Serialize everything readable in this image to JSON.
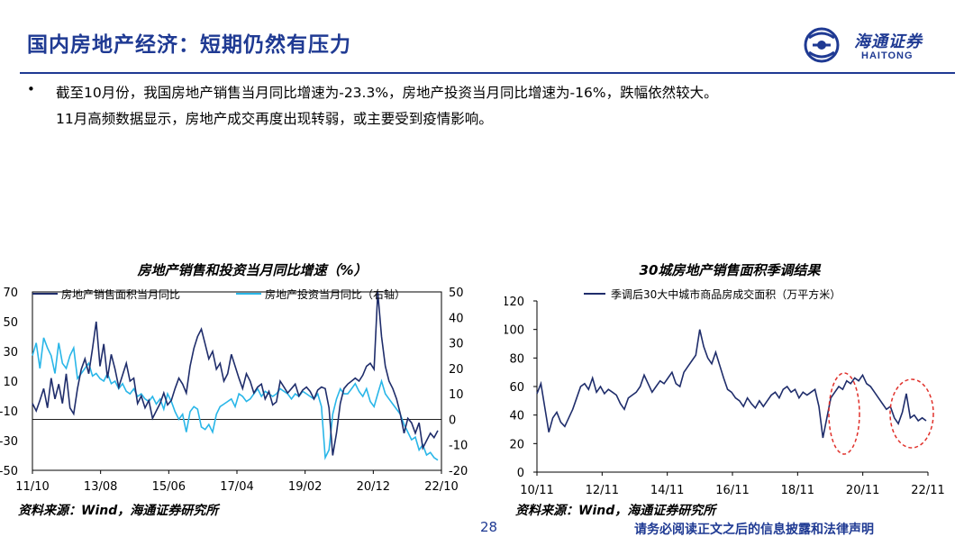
{
  "header": {
    "title": "国内房地产经济：短期仍然有压力",
    "logo_cn": "海通证券",
    "logo_en": "HAITONG"
  },
  "body": {
    "bullet": "•",
    "line1": "截至10月份，我国房地产销售当月同比增速为-23.3%，房地产投资当月同比增速为-16%，跌幅依然较大。",
    "line2": "11月高频数据显示，房地产成交再度出现转弱，或主要受到疫情影响。"
  },
  "footer": {
    "source_left": "资料来源：Wind，海通证券研究所",
    "source_right": "资料来源：Wind，海通证券研究所",
    "page_number": "28",
    "disclaimer": "请务必阅读正文之后的信息披露和法律声明"
  },
  "colors": {
    "brand": "#1f3a93",
    "series_dark": "#1f2d6b",
    "series_light": "#29b6e8",
    "highlight_circle": "#e0302a"
  },
  "chart_data": [
    {
      "type": "line",
      "title": "房地产销售和投资当月同比增速（%）",
      "x_ticks": [
        "11/10",
        "13/08",
        "15/06",
        "17/04",
        "19/02",
        "20/12",
        "22/10"
      ],
      "y_left": {
        "ticks": [
          "70",
          "50",
          "30",
          "10",
          "-10",
          "-30",
          "-50"
        ],
        "range": [
          -50,
          70
        ]
      },
      "y_right": {
        "ticks": [
          "50",
          "40",
          "30",
          "20",
          "10",
          "0",
          "-10",
          "-20"
        ],
        "range": [
          -20,
          50
        ]
      },
      "legend_position": "top",
      "series": [
        {
          "name": "房地产销售面积当月同比",
          "axis": "left",
          "values": [
            -5,
            -10,
            -3,
            5,
            -8,
            12,
            -2,
            8,
            -5,
            15,
            -8,
            -12,
            5,
            18,
            25,
            15,
            32,
            50,
            20,
            35,
            12,
            28,
            18,
            6,
            14,
            22,
            10,
            12,
            -5,
            0,
            -8,
            -3,
            -15,
            -10,
            -5,
            2,
            -6,
            -3,
            5,
            12,
            8,
            2,
            20,
            32,
            40,
            45,
            35,
            25,
            30,
            18,
            22,
            10,
            15,
            28,
            20,
            12,
            5,
            15,
            10,
            2,
            6,
            8,
            -2,
            3,
            -6,
            -4,
            10,
            6,
            2,
            5,
            8,
            0,
            4,
            6,
            3,
            -2,
            4,
            6,
            5,
            -8,
            -40,
            -25,
            -5,
            5,
            8,
            10,
            12,
            10,
            14,
            20,
            22,
            18,
            70,
            40,
            20,
            10,
            5,
            -2,
            -12,
            -25,
            -15,
            -18,
            -25,
            -18,
            -35,
            -30,
            -25,
            -28,
            -23.3
          ]
        },
        {
          "name": "房地产投资当月同比（右轴）",
          "axis": "right",
          "series_label_note": "",
          "values": [
            25,
            30,
            20,
            32,
            28,
            25,
            18,
            30,
            22,
            20,
            25,
            28,
            16,
            18,
            20,
            22,
            17,
            18,
            16,
            15,
            18,
            14,
            15,
            12,
            14,
            11,
            10,
            12,
            9,
            10,
            8,
            7,
            9,
            6,
            8,
            4,
            10,
            7,
            3,
            0,
            2,
            -5,
            3,
            5,
            4,
            -3,
            -4,
            -2,
            -5,
            2,
            5,
            6,
            7,
            8,
            5,
            10,
            9,
            7,
            8,
            10,
            12,
            9,
            11,
            10,
            9,
            10,
            12,
            11,
            10,
            8,
            10,
            9,
            11,
            10,
            9,
            8,
            10,
            5,
            -15,
            -12,
            2,
            8,
            12,
            10,
            10,
            12,
            14,
            11,
            9,
            12,
            7,
            5,
            10,
            15,
            10,
            8,
            6,
            4,
            2,
            -2,
            -5,
            -8,
            -7,
            -12,
            -10,
            -14,
            -13,
            -15,
            -16
          ]
        }
      ]
    },
    {
      "type": "line",
      "title": "30城房地产销售面积季调结果",
      "x_ticks": [
        "10/11",
        "12/11",
        "14/11",
        "16/11",
        "18/11",
        "20/11",
        "22/11"
      ],
      "y_left": {
        "ticks": [
          "120",
          "100",
          "80",
          "60",
          "40",
          "20",
          "0"
        ],
        "range": [
          0,
          120
        ]
      },
      "legend_position": "top",
      "series": [
        {
          "name": "季调后30大中城市商品房成交面积（万平方米）",
          "values": [
            55,
            62,
            45,
            28,
            38,
            42,
            35,
            32,
            38,
            44,
            52,
            60,
            62,
            58,
            66,
            56,
            60,
            55,
            58,
            56,
            54,
            48,
            44,
            52,
            54,
            56,
            60,
            68,
            62,
            56,
            60,
            64,
            62,
            66,
            70,
            62,
            60,
            70,
            74,
            78,
            82,
            100,
            88,
            80,
            76,
            84,
            75,
            66,
            58,
            56,
            52,
            50,
            46,
            52,
            48,
            45,
            50,
            46,
            50,
            54,
            56,
            52,
            58,
            60,
            56,
            58,
            52,
            56,
            54,
            56,
            58,
            46,
            24,
            38,
            52,
            56,
            60,
            58,
            64,
            62,
            66,
            64,
            68,
            62,
            60,
            56,
            52,
            48,
            44,
            46,
            38,
            34,
            42,
            55,
            38,
            40,
            36,
            38,
            36
          ]
        }
      ]
    }
  ]
}
